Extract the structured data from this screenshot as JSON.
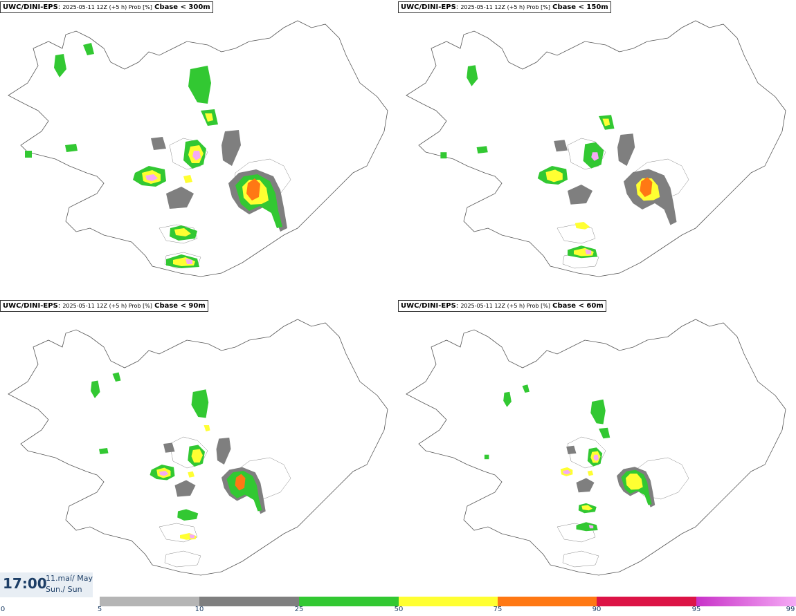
{
  "panels": [
    {
      "model": "UWC/DINI-EPS",
      "meta": "2025-05-11 12Z (+5 h) Prob [%]",
      "cbase": "Cbase < 300m"
    },
    {
      "model": "UWC/DINI-EPS",
      "meta": "2025-05-11 12Z (+5 h) Prob [%]",
      "cbase": "Cbase < 150m"
    },
    {
      "model": "UWC/DINI-EPS",
      "meta": "2025-05-11 12Z (+5 h) Prob [%]",
      "cbase": "Cbase < 90m"
    },
    {
      "model": "UWC/DINI-EPS",
      "meta": "2025-05-11 12Z (+5 h) Prob [%]",
      "cbase": "Cbase < 60m"
    }
  ],
  "valid_time": {
    "time": "17:00",
    "date": "11.maí/ May",
    "day": "Sun./ Sun"
  },
  "legend": {
    "ticks": [
      "0",
      "5",
      "10",
      "25",
      "50",
      "75",
      "90",
      "95",
      "99"
    ],
    "colors": {
      "c5": "#b5b5b5",
      "c10": "#7f7f7f",
      "c25": "#32c832",
      "c50": "#ffff32",
      "c75": "#ff7814",
      "c90": "#dc1446",
      "c95": "#c832c8",
      "c99": "#f5aaf5"
    }
  }
}
